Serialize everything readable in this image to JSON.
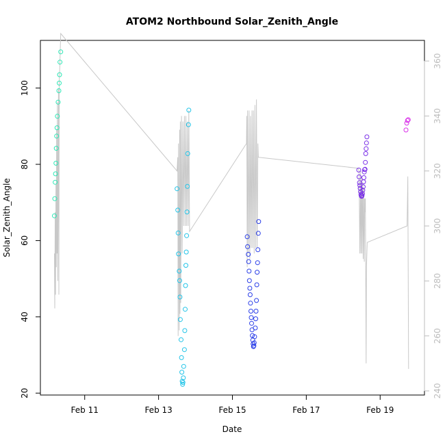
{
  "chart_data": {
    "type": "scatter",
    "title": "ATOM2 Northbound Solar_Zenith_Angle",
    "xlabel": "Date",
    "ylabel": "Solar_Zenith_Angle",
    "x_unit": "days of February",
    "xlim": [
      9.8,
      20.2
    ],
    "ylim": [
      19.5,
      112.5
    ],
    "x_ticks": [
      {
        "value": 11,
        "label": "Feb 11"
      },
      {
        "value": 13,
        "label": "Feb 13"
      },
      {
        "value": 15,
        "label": "Feb 15"
      },
      {
        "value": 17,
        "label": "Feb 17"
      },
      {
        "value": 19,
        "label": "Feb 19"
      }
    ],
    "y_ticks": [
      20,
      40,
      60,
      80,
      100
    ],
    "right_axis": {
      "ticks": [
        240,
        260,
        280,
        300,
        320,
        340,
        360
      ],
      "ylim": [
        238.5,
        367.5
      ],
      "color": "#bdbdbd"
    },
    "grid": false,
    "legend": "none",
    "series": [
      {
        "color": "#2ee8b6",
        "points": [
          [
            10.18,
            66.5
          ],
          [
            10.19,
            71.0
          ],
          [
            10.2,
            75.3
          ],
          [
            10.21,
            77.5
          ],
          [
            10.22,
            80.3
          ],
          [
            10.23,
            84.2
          ],
          [
            10.24,
            87.4
          ],
          [
            10.25,
            89.6
          ],
          [
            10.26,
            92.6
          ],
          [
            10.28,
            96.3
          ],
          [
            10.3,
            99.3
          ],
          [
            10.31,
            101.3
          ],
          [
            10.32,
            103.5
          ],
          [
            10.33,
            106.8
          ],
          [
            10.35,
            109.5
          ]
        ]
      },
      {
        "color": "#22c4e8",
        "points": [
          [
            13.5,
            73.6
          ],
          [
            13.52,
            68.0
          ],
          [
            13.53,
            62.0
          ],
          [
            13.54,
            56.5
          ],
          [
            13.56,
            52.0
          ],
          [
            13.57,
            49.5
          ],
          [
            13.58,
            45.2
          ],
          [
            13.59,
            39.3
          ],
          [
            13.61,
            34.0
          ],
          [
            13.62,
            29.3
          ],
          [
            13.63,
            25.5
          ],
          [
            13.64,
            23.1
          ],
          [
            13.65,
            22.3
          ],
          [
            13.66,
            22.8
          ],
          [
            13.67,
            24.0
          ],
          [
            13.68,
            27.0
          ],
          [
            13.7,
            31.4
          ],
          [
            13.71,
            36.4
          ],
          [
            13.72,
            42.0
          ],
          [
            13.73,
            48.2
          ],
          [
            13.74,
            53.5
          ],
          [
            13.75,
            57.0
          ],
          [
            13.76,
            61.3
          ],
          [
            13.77,
            67.5
          ],
          [
            13.78,
            74.2
          ],
          [
            13.79,
            82.8
          ],
          [
            13.81,
            90.4
          ],
          [
            13.82,
            94.2
          ]
        ]
      },
      {
        "color": "#2a3ee8",
        "points": [
          [
            15.4,
            61.0
          ],
          [
            15.41,
            58.4
          ],
          [
            15.43,
            56.4
          ],
          [
            15.44,
            54.5
          ],
          [
            15.45,
            52.0
          ],
          [
            15.46,
            49.5
          ],
          [
            15.47,
            47.5
          ],
          [
            15.48,
            45.8
          ],
          [
            15.49,
            43.6
          ],
          [
            15.5,
            41.5
          ],
          [
            15.51,
            39.8
          ],
          [
            15.52,
            38.3
          ],
          [
            15.53,
            36.6
          ],
          [
            15.54,
            35.1
          ],
          [
            15.55,
            33.9
          ],
          [
            15.56,
            32.9
          ],
          [
            15.57,
            32.2
          ],
          [
            15.58,
            32.4
          ],
          [
            15.59,
            33.2
          ],
          [
            15.6,
            34.8
          ],
          [
            15.62,
            37.1
          ],
          [
            15.63,
            39.5
          ],
          [
            15.64,
            41.5
          ],
          [
            15.65,
            44.3
          ],
          [
            15.66,
            48.4
          ],
          [
            15.67,
            51.7
          ],
          [
            15.68,
            54.2
          ],
          [
            15.69,
            57.6
          ],
          [
            15.7,
            61.9
          ],
          [
            15.71,
            65.0
          ]
        ]
      },
      {
        "color": "#7a2fe8",
        "points": [
          [
            18.42,
            78.5
          ],
          [
            18.43,
            76.7
          ],
          [
            18.44,
            75.2
          ],
          [
            18.45,
            74.5
          ],
          [
            18.46,
            73.7
          ],
          [
            18.47,
            72.8
          ],
          [
            18.48,
            72.1
          ],
          [
            18.49,
            71.7
          ],
          [
            18.5,
            71.6
          ],
          [
            18.51,
            71.8
          ],
          [
            18.52,
            72.3
          ],
          [
            18.53,
            73.2
          ],
          [
            18.54,
            74.1
          ],
          [
            18.55,
            75.4
          ],
          [
            18.56,
            76.5
          ],
          [
            18.57,
            78.0
          ],
          [
            18.58,
            78.6
          ],
          [
            18.59,
            78.7
          ],
          [
            18.6,
            80.5
          ],
          [
            18.61,
            82.8
          ],
          [
            18.62,
            84.1
          ],
          [
            18.63,
            85.6
          ],
          [
            18.64,
            87.2
          ]
        ]
      },
      {
        "color": "#d82ee8",
        "points": [
          [
            19.7,
            89.0
          ],
          [
            19.72,
            90.8
          ],
          [
            19.74,
            91.5
          ],
          [
            19.76,
            91.7
          ]
        ]
      }
    ],
    "right_axis_line": {
      "color": "#c8c8c8",
      "points": [
        [
          10.18,
          290
        ],
        [
          10.19,
          270
        ],
        [
          10.2,
          305
        ],
        [
          10.21,
          275
        ],
        [
          10.22,
          315
        ],
        [
          10.23,
          285
        ],
        [
          10.24,
          335
        ],
        [
          10.25,
          290
        ],
        [
          10.26,
          345
        ],
        [
          10.27,
          280
        ],
        [
          10.29,
          350
        ],
        [
          10.3,
          275
        ],
        [
          10.31,
          352
        ],
        [
          10.33,
          360
        ],
        [
          10.35,
          370
        ],
        [
          13.5,
          320
        ],
        [
          13.52,
          325
        ],
        [
          13.53,
          260
        ],
        [
          13.54,
          330
        ],
        [
          13.56,
          262
        ],
        [
          13.57,
          335
        ],
        [
          13.58,
          268
        ],
        [
          13.59,
          338
        ],
        [
          13.6,
          272
        ],
        [
          13.62,
          340
        ],
        [
          13.64,
          290
        ],
        [
          13.66,
          338
        ],
        [
          13.68,
          300
        ],
        [
          13.7,
          340
        ],
        [
          13.72,
          300
        ],
        [
          13.74,
          340
        ],
        [
          13.76,
          300
        ],
        [
          13.78,
          338
        ],
        [
          13.8,
          300
        ],
        [
          13.82,
          342
        ],
        [
          13.84,
          298
        ],
        [
          15.38,
          330
        ],
        [
          15.39,
          340
        ],
        [
          15.4,
          285
        ],
        [
          15.41,
          342
        ],
        [
          15.43,
          290
        ],
        [
          15.45,
          342
        ],
        [
          15.47,
          288
        ],
        [
          15.49,
          340
        ],
        [
          15.51,
          292
        ],
        [
          15.53,
          342
        ],
        [
          15.55,
          292
        ],
        [
          15.57,
          342
        ],
        [
          15.59,
          290
        ],
        [
          15.61,
          344
        ],
        [
          15.63,
          292
        ],
        [
          15.65,
          346
        ],
        [
          15.67,
          292
        ],
        [
          15.69,
          330
        ],
        [
          15.7,
          325
        ],
        [
          18.4,
          321
        ],
        [
          18.43,
          320
        ],
        [
          18.45,
          290
        ],
        [
          18.47,
          320
        ],
        [
          18.48,
          290
        ],
        [
          18.5,
          318
        ],
        [
          18.51,
          290
        ],
        [
          18.53,
          316
        ],
        [
          18.54,
          288
        ],
        [
          18.55,
          314
        ],
        [
          18.57,
          287
        ],
        [
          18.58,
          310
        ],
        [
          18.59,
          305
        ],
        [
          18.6,
          310
        ],
        [
          18.62,
          250
        ],
        [
          18.63,
          285
        ],
        [
          18.65,
          294
        ],
        [
          19.73,
          300
        ],
        [
          19.75,
          318
        ],
        [
          19.77,
          248
        ]
      ]
    }
  }
}
